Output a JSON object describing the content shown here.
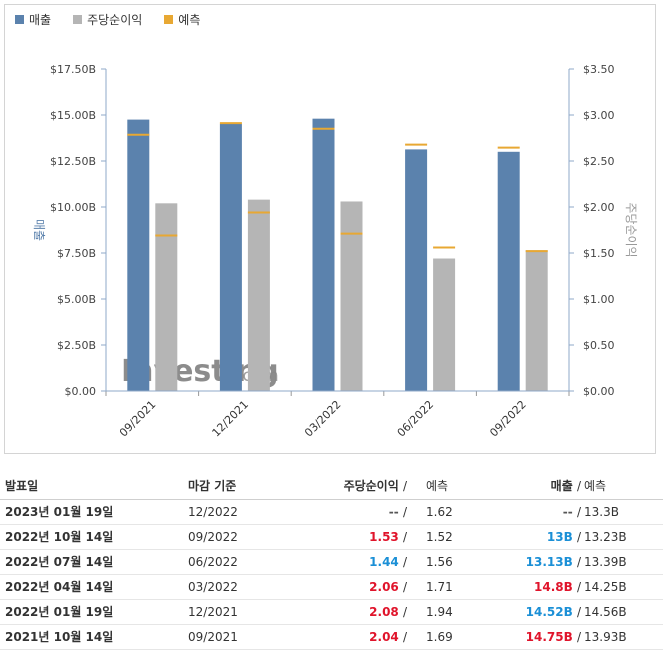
{
  "legend": {
    "revenue_label": "매출",
    "eps_label": "주당순이익",
    "forecast_label": "예측"
  },
  "colors": {
    "revenue": "#5b82ad",
    "eps": "#b5b5b5",
    "forecast": "#e8a833",
    "positive": "#e0142b",
    "negative": "#1a8fd6"
  },
  "chart_data": {
    "type": "bar",
    "categories": [
      "09/2021",
      "12/2021",
      "03/2022",
      "06/2022",
      "09/2022"
    ],
    "series": [
      {
        "name": "매출",
        "axis": "left",
        "values": [
          14.75,
          14.52,
          14.8,
          13.13,
          13.0
        ]
      },
      {
        "name": "주당순이익",
        "axis": "right",
        "values": [
          2.04,
          2.08,
          2.06,
          1.44,
          1.53
        ]
      }
    ],
    "forecasts": {
      "revenue": [
        13.93,
        14.56,
        14.25,
        13.39,
        13.23
      ],
      "eps": [
        1.69,
        1.94,
        1.71,
        1.56,
        1.52
      ]
    },
    "ylabel_left": "매출",
    "ylabel_right": "주당순이익",
    "ylim_left": [
      0,
      17.5
    ],
    "ylim_right": [
      0,
      3.5
    ],
    "yticks_left": [
      "$0.00",
      "$2.50B",
      "$5.00B",
      "$7.50B",
      "$10.00B",
      "$12.50B",
      "$15.00B",
      "$17.50B"
    ],
    "yticks_right": [
      "$0.00",
      "$0.50",
      "$1.00",
      "$1.50",
      "$2.00",
      "$2.50",
      "$3.00",
      "$3.50"
    ],
    "grid": false,
    "legend": "top-left"
  },
  "watermark": {
    "brand": "Investing",
    "suffix": ".com"
  },
  "table": {
    "headers": {
      "date": "발표일",
      "period": "마감 기준",
      "eps": "주당순이익",
      "eps_forecast": "예측",
      "revenue": "매출",
      "revenue_forecast": "예측",
      "slash": "/"
    },
    "rows": [
      {
        "date": "2023년 01월 19일",
        "period": "12/2022",
        "eps": "--",
        "eps_class": "muted",
        "eps_forecast": "1.62",
        "revenue": "--",
        "revenue_class": "muted",
        "revenue_forecast": "13.3B"
      },
      {
        "date": "2022년 10월 14일",
        "period": "09/2022",
        "eps": "1.53",
        "eps_class": "red",
        "eps_forecast": "1.52",
        "revenue": "13B",
        "revenue_class": "blue",
        "revenue_forecast": "13.23B"
      },
      {
        "date": "2022년 07월 14일",
        "period": "06/2022",
        "eps": "1.44",
        "eps_class": "blue",
        "eps_forecast": "1.56",
        "revenue": "13.13B",
        "revenue_class": "blue",
        "revenue_forecast": "13.39B"
      },
      {
        "date": "2022년 04월 14일",
        "period": "03/2022",
        "eps": "2.06",
        "eps_class": "red",
        "eps_forecast": "1.71",
        "revenue": "14.8B",
        "revenue_class": "red",
        "revenue_forecast": "14.25B"
      },
      {
        "date": "2022년 01월 19일",
        "period": "12/2021",
        "eps": "2.08",
        "eps_class": "red",
        "eps_forecast": "1.94",
        "revenue": "14.52B",
        "revenue_class": "blue",
        "revenue_forecast": "14.56B"
      },
      {
        "date": "2021년 10월 14일",
        "period": "09/2021",
        "eps": "2.04",
        "eps_class": "red",
        "eps_forecast": "1.69",
        "revenue": "14.75B",
        "revenue_class": "red",
        "revenue_forecast": "13.93B"
      }
    ]
  }
}
